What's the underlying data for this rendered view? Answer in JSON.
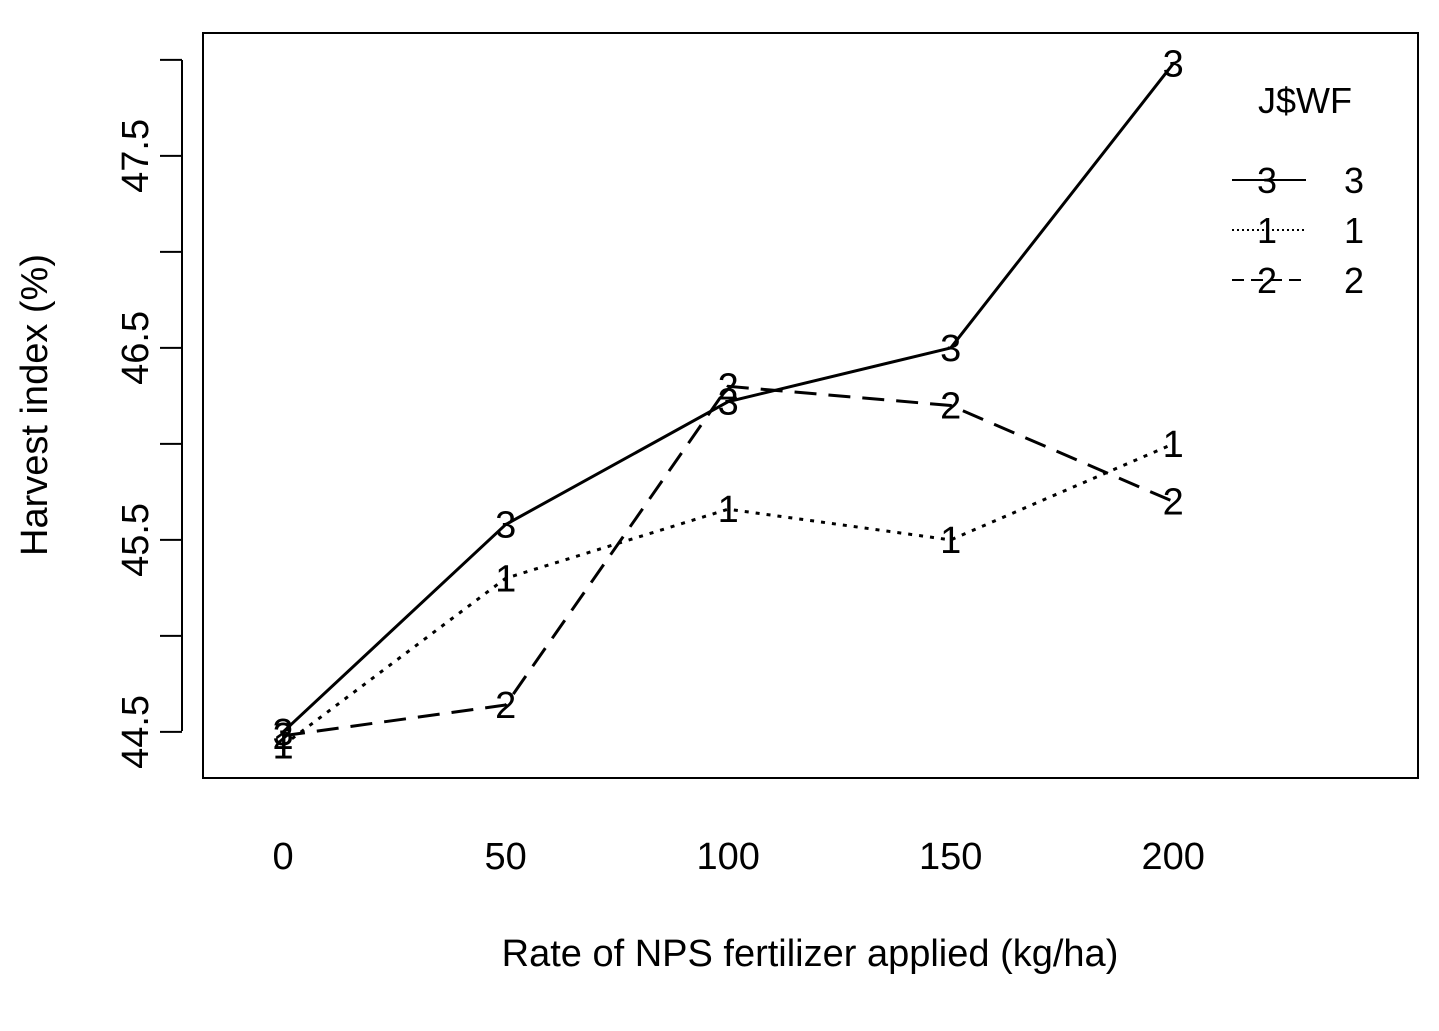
{
  "chart_data": {
    "type": "line",
    "title": "",
    "xlabel": "Rate of NPS fertilizer applied (kg/ha)",
    "ylabel": "Harvest index (%)",
    "x": [
      0,
      50,
      100,
      150,
      200
    ],
    "xticks": [
      "0",
      "50",
      "100",
      "150",
      "200"
    ],
    "yticks": [
      "44.5",
      "45.5",
      "46.5",
      "47.5"
    ],
    "yticks_minor": [
      45.0,
      46.0,
      47.0,
      48.0
    ],
    "ylim": [
      44.26,
      48.14
    ],
    "xlim": [
      -18,
      255
    ],
    "grid": false,
    "legend": {
      "title": "J$WF",
      "position": "top-right"
    },
    "series": [
      {
        "name": "3",
        "marker": "3",
        "linestyle": "solid",
        "values": [
          44.5,
          45.58,
          46.22,
          46.5,
          47.98
        ]
      },
      {
        "name": "1",
        "marker": "1",
        "linestyle": "dotted",
        "values": [
          44.43,
          45.3,
          45.66,
          45.5,
          46.0
        ]
      },
      {
        "name": "2",
        "marker": "2",
        "linestyle": "dashed",
        "values": [
          44.48,
          44.64,
          46.3,
          46.2,
          45.7
        ]
      }
    ]
  }
}
